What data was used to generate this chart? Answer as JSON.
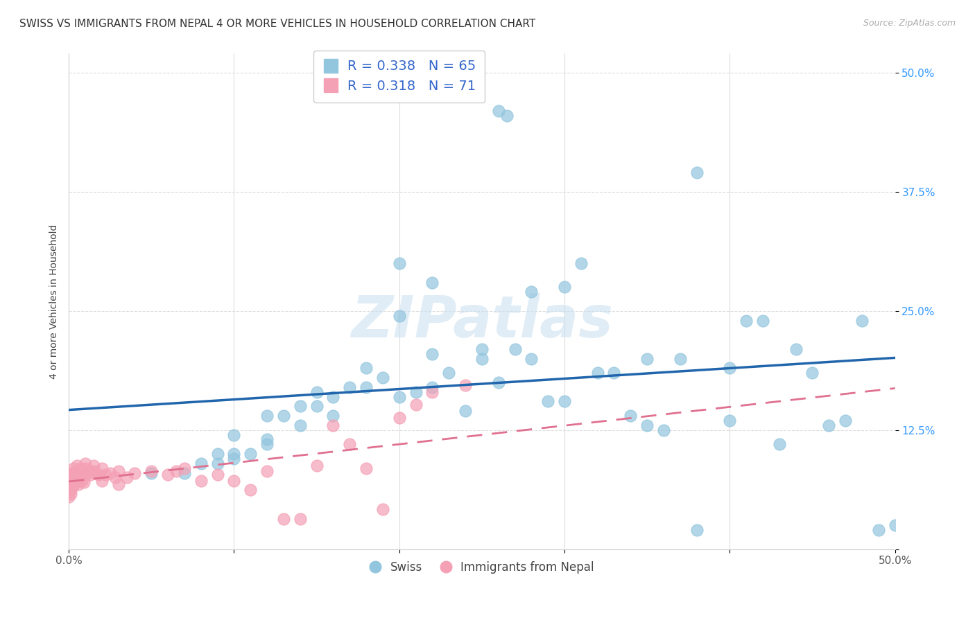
{
  "title": "SWISS VS IMMIGRANTS FROM NEPAL 4 OR MORE VEHICLES IN HOUSEHOLD CORRELATION CHART",
  "source": "Source: ZipAtlas.com",
  "ylabel": "4 or more Vehicles in Household",
  "legend_swiss_R": "R = 0.338",
  "legend_swiss_N": "N = 65",
  "legend_nepal_R": "R = 0.318",
  "legend_nepal_N": "N = 71",
  "legend_label_swiss": "Swiss",
  "legend_label_nepal": "Immigrants from Nepal",
  "swiss_color": "#92c5de",
  "nepal_color": "#f4a0b5",
  "trendline_swiss_color": "#2166ac",
  "trendline_nepal_color": "#e07090",
  "swiss_x": [
    0.26,
    0.265,
    0.05,
    0.07,
    0.08,
    0.09,
    0.09,
    0.1,
    0.1,
    0.11,
    0.12,
    0.12,
    0.13,
    0.14,
    0.14,
    0.15,
    0.16,
    0.17,
    0.18,
    0.19,
    0.2,
    0.21,
    0.22,
    0.23,
    0.24,
    0.25,
    0.26,
    0.27,
    0.28,
    0.29,
    0.3,
    0.31,
    0.32,
    0.33,
    0.34,
    0.35,
    0.36,
    0.37,
    0.38,
    0.4,
    0.41,
    0.42,
    0.43,
    0.44,
    0.45,
    0.46,
    0.47,
    0.48,
    0.49,
    0.5,
    0.15,
    0.2,
    0.22,
    0.25,
    0.28,
    0.3,
    0.35,
    0.38,
    0.4,
    0.1,
    0.12,
    0.16,
    0.18,
    0.2,
    0.22
  ],
  "swiss_y": [
    0.46,
    0.455,
    0.08,
    0.08,
    0.09,
    0.09,
    0.1,
    0.1,
    0.12,
    0.1,
    0.11,
    0.14,
    0.14,
    0.13,
    0.15,
    0.15,
    0.14,
    0.17,
    0.17,
    0.18,
    0.16,
    0.165,
    0.17,
    0.185,
    0.145,
    0.2,
    0.175,
    0.21,
    0.2,
    0.155,
    0.275,
    0.3,
    0.185,
    0.185,
    0.14,
    0.13,
    0.125,
    0.2,
    0.395,
    0.19,
    0.24,
    0.24,
    0.11,
    0.21,
    0.185,
    0.13,
    0.135,
    0.24,
    0.02,
    0.025,
    0.165,
    0.3,
    0.28,
    0.21,
    0.27,
    0.155,
    0.2,
    0.02,
    0.135,
    0.095,
    0.115,
    0.16,
    0.19,
    0.245,
    0.205
  ],
  "nepal_x": [
    0.0,
    0.0,
    0.0,
    0.0,
    0.0,
    0.0,
    0.0,
    0.0,
    0.0,
    0.0,
    0.001,
    0.001,
    0.001,
    0.002,
    0.002,
    0.002,
    0.003,
    0.003,
    0.003,
    0.003,
    0.004,
    0.004,
    0.005,
    0.005,
    0.005,
    0.006,
    0.006,
    0.007,
    0.007,
    0.008,
    0.008,
    0.009,
    0.009,
    0.01,
    0.01,
    0.01,
    0.012,
    0.013,
    0.015,
    0.015,
    0.016,
    0.018,
    0.02,
    0.02,
    0.022,
    0.025,
    0.028,
    0.03,
    0.03,
    0.035,
    0.04,
    0.05,
    0.06,
    0.065,
    0.07,
    0.08,
    0.09,
    0.1,
    0.11,
    0.12,
    0.13,
    0.14,
    0.15,
    0.16,
    0.17,
    0.18,
    0.19,
    0.2,
    0.21,
    0.22,
    0.24
  ],
  "nepal_y": [
    0.055,
    0.06,
    0.062,
    0.065,
    0.068,
    0.07,
    0.072,
    0.075,
    0.078,
    0.08,
    0.058,
    0.062,
    0.068,
    0.065,
    0.07,
    0.075,
    0.068,
    0.072,
    0.08,
    0.085,
    0.07,
    0.078,
    0.075,
    0.082,
    0.088,
    0.068,
    0.08,
    0.075,
    0.085,
    0.072,
    0.08,
    0.07,
    0.082,
    0.078,
    0.085,
    0.09,
    0.082,
    0.078,
    0.082,
    0.088,
    0.08,
    0.078,
    0.072,
    0.085,
    0.078,
    0.08,
    0.075,
    0.068,
    0.082,
    0.075,
    0.08,
    0.082,
    0.078,
    0.082,
    0.085,
    0.072,
    0.078,
    0.072,
    0.062,
    0.082,
    0.032,
    0.032,
    0.088,
    0.13,
    0.11,
    0.085,
    0.042,
    0.138,
    0.152,
    0.165,
    0.172
  ],
  "watermark_text": "ZIPatlas",
  "background_color": "#ffffff",
  "grid_color": "#dddddd",
  "xmin": 0.0,
  "xmax": 0.5,
  "ymin": 0.0,
  "ymax": 0.52
}
